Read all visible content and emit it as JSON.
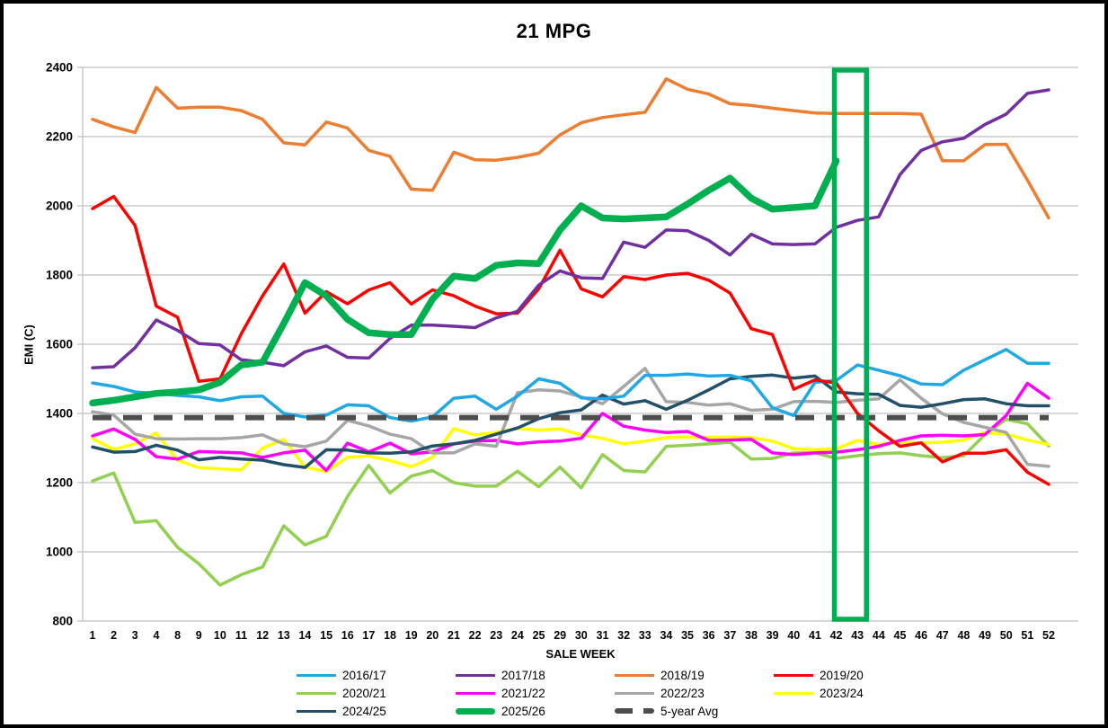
{
  "title": "21 MPG",
  "chart_data": {
    "type": "line",
    "title": "21 MPG",
    "xlabel": "SALE WEEK",
    "ylabel": "EMI (C)",
    "ylim": [
      800,
      2400
    ],
    "y_ticks": [
      800,
      1000,
      1200,
      1400,
      1600,
      1800,
      2000,
      2200,
      2400
    ],
    "grid": "horizontal",
    "legend_position": "bottom",
    "gridline_color": "#BFBFBF",
    "categories": [
      1,
      2,
      3,
      4,
      8,
      9,
      10,
      11,
      12,
      13,
      14,
      15,
      16,
      17,
      18,
      19,
      20,
      21,
      22,
      23,
      24,
      25,
      29,
      30,
      31,
      32,
      33,
      34,
      35,
      36,
      37,
      38,
      39,
      40,
      41,
      42,
      43,
      44,
      45,
      46,
      47,
      48,
      49,
      50,
      51,
      52
    ],
    "series": [
      {
        "name": "2016/17",
        "color": "#1FA8E4",
        "width": 3.5,
        "values": [
          1488,
          1478,
          1462,
          1458,
          1452,
          1448,
          1437,
          1448,
          1450,
          1400,
          1390,
          1395,
          1425,
          1422,
          1388,
          1378,
          1390,
          1444,
          1450,
          1412,
          1450,
          1500,
          1487,
          1445,
          1442,
          1450,
          1510,
          1510,
          1514,
          1508,
          1510,
          1494,
          1416,
          1394,
          1490,
          1495,
          1540,
          1525,
          1509,
          1485,
          1483,
          1525,
          1555,
          1585,
          1545,
          1545
        ]
      },
      {
        "name": "2017/18",
        "color": "#7030A0",
        "width": 3.5,
        "values": [
          1532,
          1535,
          1590,
          1670,
          1640,
          1602,
          1598,
          1555,
          1548,
          1538,
          1578,
          1595,
          1562,
          1560,
          1617,
          1655,
          1655,
          1652,
          1648,
          1676,
          1695,
          1771,
          1812,
          1792,
          1790,
          1895,
          1880,
          1930,
          1928,
          1900,
          1858,
          1918,
          1890,
          1888,
          1890,
          1938,
          1958,
          1968,
          2090,
          2160,
          2185,
          2195,
          2235,
          2265,
          2325,
          2335
        ]
      },
      {
        "name": "2018/19",
        "color": "#ED7D31",
        "width": 3.5,
        "values": [
          2250,
          2228,
          2212,
          2342,
          2282,
          2285,
          2285,
          2275,
          2250,
          2182,
          2176,
          2242,
          2225,
          2160,
          2143,
          2048,
          2045,
          2155,
          2133,
          2132,
          2140,
          2152,
          2205,
          2240,
          2255,
          2263,
          2270,
          2367,
          2337,
          2323,
          2295,
          2290,
          2282,
          2275,
          2268,
          2267,
          2267,
          2267,
          2267,
          2265,
          2130,
          2130,
          2177,
          2178,
          2074,
          1965
        ]
      },
      {
        "name": "2019/20",
        "color": "#FE0000",
        "width": 3.5,
        "values": [
          1992,
          2027,
          1943,
          1710,
          1678,
          1493,
          1500,
          1630,
          1740,
          1832,
          1690,
          1752,
          1717,
          1757,
          1778,
          1716,
          1757,
          1740,
          1710,
          1688,
          1690,
          1760,
          1872,
          1760,
          1737,
          1795,
          1787,
          1800,
          1805,
          1785,
          1748,
          1645,
          1628,
          1470,
          1497,
          1488,
          1400,
          1350,
          1305,
          1315,
          1260,
          1285,
          1285,
          1295,
          1230,
          1195
        ]
      },
      {
        "name": "2020/21",
        "color": "#92D050",
        "width": 3.5,
        "values": [
          1205,
          1228,
          1085,
          1090,
          1013,
          966,
          904,
          934,
          956,
          1075,
          1020,
          1045,
          1160,
          1250,
          1170,
          1219,
          1235,
          1200,
          1190,
          1190,
          1233,
          1188,
          1245,
          1185,
          1281,
          1235,
          1231,
          1305,
          1308,
          1312,
          1317,
          1268,
          1270,
          1286,
          1286,
          1270,
          1278,
          1284,
          1286,
          1278,
          1272,
          1278,
          1339,
          1383,
          1370,
          1306
        ]
      },
      {
        "name": "2021/22",
        "color": "#FF00FF",
        "width": 3.5,
        "values": [
          1335,
          1355,
          1325,
          1275,
          1268,
          1290,
          1288,
          1286,
          1273,
          1286,
          1294,
          1235,
          1314,
          1289,
          1314,
          1283,
          1289,
          1312,
          1320,
          1322,
          1312,
          1318,
          1320,
          1328,
          1400,
          1363,
          1352,
          1345,
          1348,
          1322,
          1323,
          1325,
          1286,
          1281,
          1286,
          1288,
          1295,
          1305,
          1322,
          1335,
          1337,
          1335,
          1339,
          1394,
          1487,
          1444
        ]
      },
      {
        "name": "2022/23",
        "color": "#A6A6A6",
        "width": 3.5,
        "values": [
          1405,
          1395,
          1340,
          1327,
          1326,
          1327,
          1327,
          1330,
          1338,
          1312,
          1304,
          1320,
          1380,
          1364,
          1340,
          1327,
          1286,
          1286,
          1312,
          1305,
          1460,
          1468,
          1465,
          1448,
          1428,
          1478,
          1530,
          1434,
          1432,
          1424,
          1428,
          1409,
          1412,
          1434,
          1435,
          1432,
          1438,
          1442,
          1497,
          1444,
          1399,
          1374,
          1360,
          1345,
          1253,
          1247
        ]
      },
      {
        "name": "2023/24",
        "color": "#FFFF00",
        "width": 3.5,
        "values": [
          1327,
          1296,
          1312,
          1343,
          1265,
          1243,
          1240,
          1237,
          1300,
          1325,
          1245,
          1232,
          1273,
          1277,
          1264,
          1246,
          1273,
          1356,
          1338,
          1345,
          1357,
          1352,
          1355,
          1338,
          1328,
          1312,
          1320,
          1330,
          1332,
          1330,
          1332,
          1330,
          1320,
          1298,
          1295,
          1298,
          1322,
          1310,
          1317,
          1315,
          1317,
          1323,
          1345,
          1340,
          1323,
          1310
        ]
      },
      {
        "name": "2024/25",
        "color": "#215068",
        "width": 3.5,
        "values": [
          1303,
          1288,
          1290,
          1308,
          1294,
          1266,
          1273,
          1268,
          1265,
          1252,
          1244,
          1295,
          1294,
          1286,
          1285,
          1289,
          1306,
          1312,
          1322,
          1340,
          1358,
          1385,
          1402,
          1410,
          1453,
          1427,
          1437,
          1412,
          1438,
          1468,
          1500,
          1507,
          1511,
          1502,
          1508,
          1462,
          1457,
          1455,
          1423,
          1418,
          1428,
          1440,
          1442,
          1428,
          1422,
          1422
        ]
      },
      {
        "name": "2025/26",
        "color": "#00B050",
        "width": 7.5,
        "thick": true,
        "values": [
          1430,
          1438,
          1448,
          1458,
          1462,
          1468,
          1490,
          1540,
          1548,
          1660,
          1778,
          1740,
          1672,
          1633,
          1628,
          1628,
          1730,
          1797,
          1790,
          1828,
          1835,
          1833,
          1930,
          2000,
          1965,
          1962,
          1965,
          1968,
          2005,
          2045,
          2080,
          2022,
          1990,
          1995,
          2000,
          2130,
          null,
          null,
          null,
          null,
          null,
          null,
          null,
          null,
          null,
          null
        ]
      },
      {
        "name": "5-year Avg",
        "color": "#4D4D4D",
        "width": 6,
        "dashed": true,
        "values": [
          1388,
          1388,
          1388,
          1388,
          1388,
          1388,
          1388,
          1388,
          1388,
          1388,
          1388,
          1388,
          1388,
          1388,
          1388,
          1388,
          1388,
          1388,
          1388,
          1388,
          1388,
          1388,
          1388,
          1388,
          1388,
          1388,
          1388,
          1388,
          1388,
          1388,
          1388,
          1388,
          1388,
          1388,
          1388,
          1388,
          1388,
          1388,
          1388,
          1388,
          1388,
          1388,
          1388,
          1388,
          1388,
          1388
        ]
      }
    ],
    "highlight_box": {
      "from_week": 42,
      "to_week": 43,
      "color": "#00AD50",
      "y_from": 810,
      "y_to": 2390
    }
  }
}
